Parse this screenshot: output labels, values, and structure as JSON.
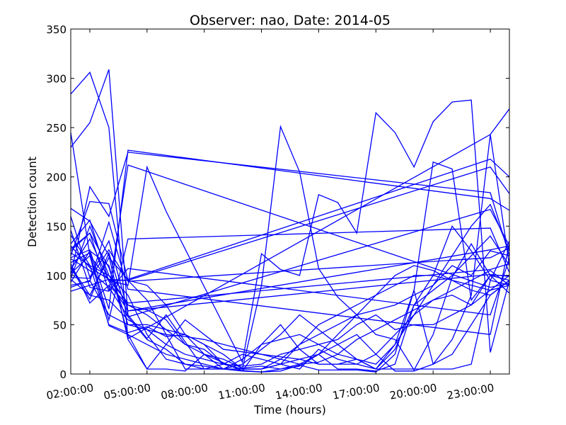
{
  "chart_data": {
    "type": "line",
    "title": "Observer: nao, Date: 2014-05",
    "xlabel": "Time (hours)",
    "ylabel": "Detection count",
    "xlim": [
      1,
      24
    ],
    "ylim": [
      0,
      350
    ],
    "x_tick_values": [
      2,
      5,
      8,
      11,
      14,
      17,
      20,
      23
    ],
    "x_tick_labels": [
      "02:00:00",
      "05:00:00",
      "08:00:00",
      "11:00:00",
      "14:00:00",
      "17:00:00",
      "20:00:00",
      "23:00:00"
    ],
    "y_ticks": [
      0,
      50,
      100,
      150,
      200,
      250,
      300,
      350
    ],
    "line_color": "#0000ff",
    "grid": false,
    "legend": "none",
    "series": [
      {
        "x": [
          1,
          2,
          3,
          4,
          23,
          24
        ],
        "values": [
          284,
          306,
          250,
          36,
          243,
          269
        ]
      },
      {
        "x": [
          1,
          2,
          3,
          4,
          5,
          6,
          8,
          10,
          11,
          12,
          13,
          14,
          15,
          16,
          17,
          18,
          19,
          20,
          21,
          22,
          23,
          24
        ],
        "values": [
          230,
          255,
          309,
          60,
          36,
          60,
          5,
          5,
          90,
          251,
          205,
          107,
          78,
          60,
          40,
          35,
          4,
          40,
          98,
          132,
          100,
          95
        ]
      },
      {
        "x": [
          1,
          2,
          3,
          4,
          5,
          6,
          10,
          11,
          12,
          13,
          14,
          15,
          16,
          17,
          18,
          19,
          20,
          21,
          22,
          23,
          24
        ],
        "values": [
          245,
          120,
          95,
          90,
          210,
          165,
          12,
          122,
          106,
          100,
          182,
          174,
          143,
          265,
          245,
          210,
          256,
          276,
          278,
          22,
          95
        ]
      },
      {
        "x": [
          1,
          2,
          3,
          4,
          23,
          24
        ],
        "values": [
          100,
          190,
          160,
          225,
          184,
          120
        ]
      },
      {
        "x": [
          1,
          2,
          3,
          4,
          5,
          7,
          9,
          11,
          12,
          13,
          14,
          15,
          16,
          17,
          18,
          19,
          20,
          21,
          22,
          23,
          24
        ],
        "values": [
          120,
          175,
          173,
          95,
          75,
          5,
          5,
          2,
          3,
          9,
          4,
          4,
          4,
          2,
          20,
          85,
          215,
          208,
          75,
          100,
          82
        ]
      },
      {
        "x": [
          1,
          2,
          3,
          4,
          23,
          24
        ],
        "values": [
          84,
          90,
          96,
          95,
          210,
          183
        ]
      },
      {
        "x": [
          1,
          2,
          3,
          4,
          5,
          6,
          7,
          8,
          10,
          11,
          12,
          13,
          14,
          15,
          16,
          17,
          18,
          19,
          20,
          21,
          22,
          23,
          24
        ],
        "values": [
          123,
          110,
          50,
          42,
          48,
          38,
          40,
          20,
          3,
          30,
          50,
          25,
          10,
          10,
          10,
          5,
          5,
          5,
          5,
          5,
          10,
          95,
          90
        ]
      },
      {
        "x": [
          1,
          2,
          3,
          4,
          23,
          24
        ],
        "values": [
          125,
          143,
          84,
          212,
          88,
          92
        ]
      },
      {
        "x": [
          1,
          2,
          3,
          4,
          5,
          6,
          7,
          8,
          9,
          10,
          11,
          12,
          13,
          14,
          15,
          16,
          17,
          18,
          19,
          20,
          21,
          22,
          23,
          24
        ],
        "values": [
          168,
          155,
          120,
          35,
          5,
          5,
          3,
          20,
          15,
          6,
          8,
          5,
          8,
          20,
          5,
          5,
          3,
          10,
          70,
          100,
          150,
          125,
          95,
          135
        ]
      },
      {
        "x": [
          1,
          2,
          3,
          4,
          23,
          24
        ],
        "values": [
          109,
          80,
          118,
          96,
          218,
          200
        ]
      },
      {
        "x": [
          1,
          2,
          3,
          4,
          5,
          7,
          9,
          11,
          13,
          14,
          15,
          16,
          17,
          18,
          19,
          20,
          21,
          22,
          23,
          24
        ],
        "values": [
          93,
          125,
          110,
          40,
          5,
          55,
          25,
          20,
          15,
          10,
          10,
          15,
          5,
          30,
          85,
          10,
          35,
          80,
          243,
          110
        ]
      },
      {
        "x": [
          1,
          2,
          3,
          4,
          23,
          24
        ],
        "values": [
          108,
          76,
          123,
          58,
          167,
          130
        ]
      },
      {
        "x": [
          1,
          2,
          3,
          4,
          5,
          6,
          7,
          8,
          9,
          10,
          11,
          12,
          13,
          14,
          15,
          16,
          17,
          18,
          19,
          20,
          21,
          22,
          23,
          24
        ],
        "values": [
          141,
          110,
          100,
          80,
          40,
          15,
          10,
          8,
          5,
          15,
          30,
          35,
          40,
          30,
          20,
          15,
          5,
          25,
          70,
          85,
          100,
          120,
          140,
          110
        ]
      },
      {
        "x": [
          1,
          2,
          3,
          4,
          23,
          24
        ],
        "values": [
          98,
          97,
          126,
          94,
          118,
          128
        ]
      },
      {
        "x": [
          1,
          2,
          3,
          4,
          5,
          6,
          7,
          8,
          9,
          10,
          11,
          12,
          13,
          14,
          15,
          16,
          17,
          18,
          19,
          20,
          21,
          22,
          23,
          24
        ],
        "values": [
          112,
          72,
          90,
          70,
          65,
          55,
          30,
          20,
          5,
          10,
          25,
          40,
          60,
          45,
          30,
          15,
          10,
          30,
          60,
          90,
          110,
          100,
          125,
          120
        ]
      },
      {
        "x": [
          1,
          2,
          3,
          4,
          23,
          24
        ],
        "values": [
          118,
          126,
          66,
          227,
          178,
          166
        ]
      },
      {
        "x": [
          1,
          2,
          3,
          4,
          5,
          6,
          7,
          8,
          9,
          10,
          11,
          12,
          13,
          14,
          15,
          16,
          17,
          18,
          19,
          20,
          21,
          22,
          23,
          24
        ],
        "values": [
          97,
          150,
          100,
          70,
          60,
          45,
          40,
          30,
          10,
          5,
          5,
          10,
          30,
          50,
          60,
          70,
          80,
          90,
          100,
          100,
          95,
          85,
          80,
          95
        ]
      },
      {
        "x": [
          1,
          2,
          3,
          4,
          23,
          24
        ],
        "values": [
          132,
          156,
          94,
          64,
          101,
          99
        ]
      },
      {
        "x": [
          1,
          2,
          3,
          4,
          5,
          6,
          7,
          8,
          9,
          10,
          11,
          12,
          13,
          14,
          15,
          16,
          17,
          18,
          19,
          20,
          21,
          22,
          23,
          24
        ],
        "values": [
          102,
          120,
          49,
          40,
          30,
          20,
          15,
          10,
          5,
          3,
          2,
          5,
          10,
          20,
          40,
          60,
          80,
          100,
          110,
          105,
          95,
          90,
          85,
          100
        ]
      },
      {
        "x": [
          1,
          2,
          3,
          4,
          23,
          24
        ],
        "values": [
          146,
          88,
          84,
          107,
          60,
          117
        ]
      },
      {
        "x": [
          1,
          2,
          3,
          4,
          5,
          6,
          7,
          8,
          9,
          10,
          11,
          12,
          13,
          14,
          15,
          16,
          17,
          18,
          19,
          20,
          21,
          22,
          23,
          24
        ],
        "values": [
          88,
          95,
          60,
          50,
          45,
          30,
          20,
          15,
          10,
          5,
          5,
          15,
          30,
          40,
          50,
          60,
          65,
          70,
          80,
          90,
          120,
          150,
          172,
          125
        ]
      },
      {
        "x": [
          1,
          2,
          3,
          4,
          23,
          24
        ],
        "values": [
          160,
          98,
          135,
          64,
          126,
          130
        ]
      },
      {
        "x": [
          1,
          2,
          3,
          4,
          5,
          6,
          7,
          8,
          9,
          10,
          11,
          12,
          13,
          14,
          15,
          16,
          17,
          18,
          19,
          20,
          21,
          22,
          23,
          24
        ],
        "values": [
          117,
          105,
          88,
          58,
          35,
          25,
          10,
          5,
          10,
          20,
          15,
          10,
          5,
          25,
          15,
          10,
          20,
          40,
          60,
          75,
          80,
          70,
          85,
          90
        ]
      },
      {
        "x": [
          1,
          2,
          3,
          4,
          23,
          24
        ],
        "values": [
          90,
          94,
          154,
          86,
          40,
          132
        ]
      },
      {
        "x": [
          1,
          2,
          3,
          4,
          5,
          6,
          7,
          8,
          9,
          10,
          11,
          12,
          13,
          14,
          15,
          16,
          17,
          18,
          19,
          20,
          21,
          22,
          23,
          24
        ],
        "values": [
          127,
          143,
          108,
          50,
          50,
          45,
          30,
          25,
          10,
          8,
          10,
          20,
          25,
          30,
          35,
          50,
          60,
          45,
          50,
          50,
          60,
          70,
          100,
          100
        ]
      },
      {
        "x": [
          1,
          2,
          3,
          4,
          23,
          24
        ],
        "values": [
          130,
          108,
          96,
          72,
          106,
          112
        ]
      },
      {
        "x": [
          1,
          2,
          3,
          4,
          5,
          6,
          7,
          8,
          9,
          10,
          11,
          12,
          13,
          14,
          15,
          16,
          17,
          18,
          19,
          20,
          21,
          22,
          23,
          24
        ],
        "values": [
          106,
          137,
          95,
          95,
          90,
          70,
          40,
          30,
          20,
          5,
          5,
          10,
          15,
          20,
          30,
          40,
          20,
          3,
          3,
          10,
          20,
          50,
          80,
          95
        ]
      },
      {
        "x": [
          1,
          2,
          3,
          4,
          23,
          24
        ],
        "values": [
          113,
          123,
          55,
          137,
          148,
          103
        ]
      },
      {
        "x": [
          1,
          2,
          3,
          4,
          5,
          6,
          7,
          8,
          9,
          10,
          11,
          12,
          13,
          14,
          15,
          16,
          17,
          18,
          19,
          20,
          21,
          22,
          23,
          24
        ],
        "values": [
          96,
          80,
          75,
          55,
          45,
          40,
          38,
          35,
          30,
          25,
          20,
          15,
          10,
          12,
          20,
          35,
          45,
          55,
          65,
          75,
          85,
          95,
          105,
          90
        ]
      }
    ]
  }
}
